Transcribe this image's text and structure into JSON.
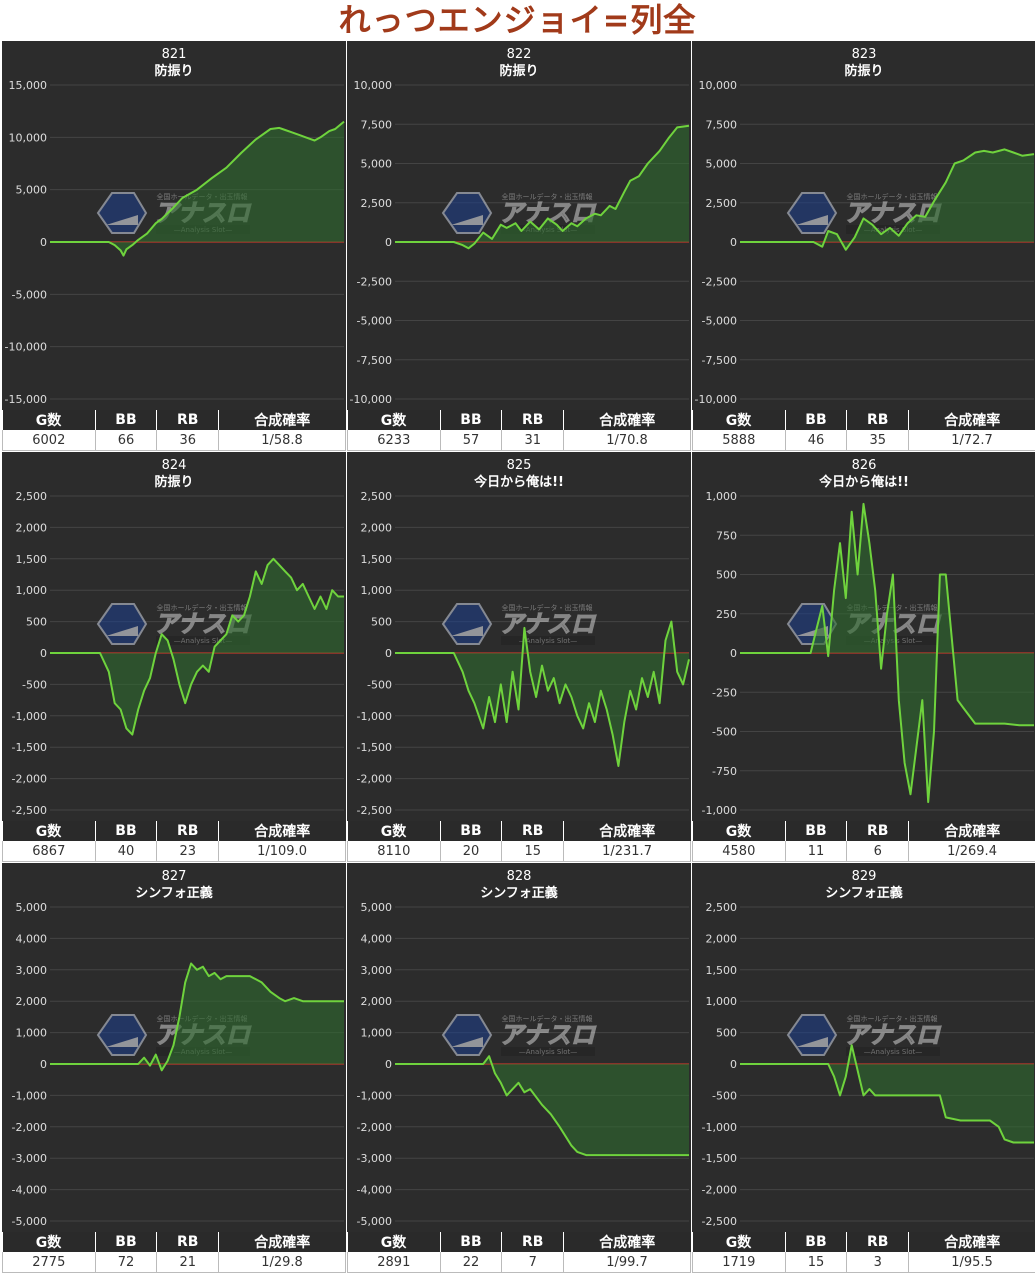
{
  "title": "れっつエンジョイ=列全",
  "stat_headers": [
    "G数",
    "BB",
    "RB",
    "合成確率"
  ],
  "colors": {
    "line": "#6fd33d",
    "fill": "#2f6b2f",
    "zero": "#c0392b",
    "panel": "#2c2c2c",
    "grid": "#444444",
    "text": "#dddddd"
  },
  "watermark": {
    "small": "全国ホールデータ・出玉情報",
    "main": "アナスロ",
    "sub": "—Analysis Slot—"
  },
  "chart_data": [
    {
      "type": "area",
      "id": "821",
      "title": "821",
      "subtitle": "防振り",
      "ylim": [
        -15000,
        15000
      ],
      "yticks": [
        "15,000",
        "10,000",
        "5,000",
        "0",
        "-5,000",
        "-10,000",
        "-15,000"
      ],
      "x": [
        0,
        0.2,
        0.22,
        0.24,
        0.25,
        0.26,
        0.28,
        0.3,
        0.33,
        0.36,
        0.38,
        0.42,
        0.45,
        0.5,
        0.55,
        0.6,
        0.65,
        0.7,
        0.75,
        0.78,
        0.8,
        0.82,
        0.85,
        0.88,
        0.9,
        0.92,
        0.95,
        0.97,
        1
      ],
      "values": [
        0,
        0,
        -300,
        -800,
        -1300,
        -700,
        -300,
        200,
        800,
        1800,
        2200,
        3300,
        4200,
        5000,
        6100,
        7100,
        8500,
        9800,
        10800,
        10900,
        10700,
        10500,
        10200,
        9900,
        9700,
        10000,
        10600,
        10800,
        11500
      ],
      "stats": {
        "games": "6002",
        "bb": "66",
        "rb": "36",
        "prob": "1/58.8"
      }
    },
    {
      "type": "area",
      "id": "822",
      "title": "822",
      "subtitle": "防振り",
      "ylim": [
        -10000,
        10000
      ],
      "yticks": [
        "10,000",
        "7,500",
        "5,000",
        "2,500",
        "0",
        "-2,500",
        "-5,000",
        "-7,500",
        "-10,000"
      ],
      "x": [
        0,
        0.2,
        0.23,
        0.25,
        0.27,
        0.3,
        0.33,
        0.36,
        0.38,
        0.41,
        0.43,
        0.46,
        0.49,
        0.52,
        0.55,
        0.57,
        0.6,
        0.62,
        0.65,
        0.68,
        0.7,
        0.73,
        0.75,
        0.78,
        0.8,
        0.83,
        0.86,
        0.9,
        0.93,
        0.96,
        1
      ],
      "values": [
        0,
        0,
        -200,
        -400,
        -100,
        600,
        200,
        1100,
        900,
        1200,
        700,
        1300,
        800,
        1500,
        1100,
        700,
        1200,
        1000,
        1500,
        1800,
        1700,
        2300,
        2100,
        3200,
        3900,
        4200,
        5000,
        5800,
        6600,
        7300,
        7400
      ],
      "stats": {
        "games": "6233",
        "bb": "57",
        "rb": "31",
        "prob": "1/70.8"
      }
    },
    {
      "type": "area",
      "id": "823",
      "title": "823",
      "subtitle": "防振り",
      "ylim": [
        -10000,
        10000
      ],
      "yticks": [
        "10,000",
        "7,500",
        "5,000",
        "2,500",
        "0",
        "-2,500",
        "-5,000",
        "-7,500",
        "-10,000"
      ],
      "x": [
        0,
        0.25,
        0.28,
        0.3,
        0.33,
        0.36,
        0.39,
        0.42,
        0.45,
        0.48,
        0.51,
        0.54,
        0.57,
        0.6,
        0.63,
        0.66,
        0.7,
        0.73,
        0.76,
        0.8,
        0.83,
        0.86,
        0.9,
        0.93,
        0.96,
        1
      ],
      "values": [
        0,
        0,
        -300,
        700,
        500,
        -500,
        300,
        1500,
        1100,
        500,
        900,
        400,
        1200,
        1700,
        1600,
        2600,
        3800,
        5000,
        5200,
        5700,
        5800,
        5700,
        5900,
        5700,
        5500,
        5600
      ],
      "stats": {
        "games": "5888",
        "bb": "46",
        "rb": "35",
        "prob": "1/72.7"
      }
    },
    {
      "type": "area",
      "id": "824",
      "title": "824",
      "subtitle": "防振り",
      "ylim": [
        -2500,
        2500
      ],
      "yticks": [
        "2,500",
        "2,000",
        "1,500",
        "1,000",
        "500",
        "0",
        "-500",
        "-1,000",
        "-1,500",
        "-2,000",
        "-2,500"
      ],
      "x": [
        0,
        0.17,
        0.2,
        0.22,
        0.24,
        0.26,
        0.28,
        0.3,
        0.32,
        0.34,
        0.36,
        0.38,
        0.4,
        0.42,
        0.44,
        0.46,
        0.48,
        0.5,
        0.52,
        0.54,
        0.56,
        0.58,
        0.6,
        0.62,
        0.64,
        0.66,
        0.68,
        0.7,
        0.72,
        0.74,
        0.76,
        0.78,
        0.8,
        0.82,
        0.84,
        0.86,
        0.88,
        0.9,
        0.92,
        0.94,
        0.96,
        0.98,
        1
      ],
      "values": [
        0,
        0,
        -300,
        -800,
        -900,
        -1200,
        -1300,
        -900,
        -600,
        -400,
        0,
        300,
        200,
        -100,
        -500,
        -800,
        -500,
        -300,
        -200,
        -300,
        100,
        200,
        300,
        600,
        500,
        600,
        900,
        1300,
        1100,
        1400,
        1500,
        1400,
        1300,
        1200,
        1000,
        1100,
        900,
        700,
        900,
        700,
        1000,
        900,
        900
      ],
      "stats": {
        "games": "6867",
        "bb": "40",
        "rb": "23",
        "prob": "1/109.0"
      }
    },
    {
      "type": "area",
      "id": "825",
      "title": "825",
      "subtitle": "今日から俺は!!",
      "ylim": [
        -2500,
        2500
      ],
      "yticks": [
        "2,500",
        "2,000",
        "1,500",
        "1,000",
        "500",
        "0",
        "-500",
        "-1,000",
        "-1,500",
        "-2,000",
        "-2,500"
      ],
      "x": [
        0,
        0.2,
        0.23,
        0.25,
        0.27,
        0.3,
        0.32,
        0.34,
        0.36,
        0.38,
        0.4,
        0.42,
        0.44,
        0.46,
        0.48,
        0.5,
        0.52,
        0.54,
        0.56,
        0.58,
        0.6,
        0.62,
        0.64,
        0.66,
        0.68,
        0.7,
        0.72,
        0.74,
        0.76,
        0.78,
        0.8,
        0.82,
        0.84,
        0.86,
        0.88,
        0.9,
        0.92,
        0.94,
        0.96,
        0.98,
        1
      ],
      "values": [
        0,
        0,
        -300,
        -600,
        -800,
        -1200,
        -700,
        -1100,
        -500,
        -1100,
        -300,
        -900,
        400,
        -300,
        -700,
        -200,
        -600,
        -400,
        -800,
        -500,
        -700,
        -1000,
        -1200,
        -800,
        -1100,
        -600,
        -900,
        -1300,
        -1800,
        -1100,
        -600,
        -900,
        -400,
        -700,
        -300,
        -800,
        200,
        500,
        -300,
        -500,
        -100
      ],
      "stats": {
        "games": "8110",
        "bb": "20",
        "rb": "15",
        "prob": "1/231.7"
      }
    },
    {
      "type": "area",
      "id": "826",
      "title": "826",
      "subtitle": "今日から俺は!!",
      "ylim": [
        -1000,
        1000
      ],
      "yticks": [
        "1,000",
        "750",
        "500",
        "250",
        "0",
        "-250",
        "-500",
        "-750",
        "-1,000"
      ],
      "x": [
        0,
        0.24,
        0.26,
        0.28,
        0.3,
        0.32,
        0.34,
        0.36,
        0.38,
        0.4,
        0.42,
        0.44,
        0.46,
        0.48,
        0.5,
        0.52,
        0.54,
        0.56,
        0.58,
        0.6,
        0.62,
        0.64,
        0.66,
        0.68,
        0.7,
        0.72,
        0.74,
        0.76,
        0.8,
        0.85,
        0.9,
        0.95,
        1
      ],
      "values": [
        0,
        0,
        150,
        300,
        -20,
        400,
        700,
        350,
        900,
        500,
        950,
        700,
        400,
        -100,
        250,
        500,
        -300,
        -700,
        -900,
        -600,
        -300,
        -950,
        -500,
        500,
        500,
        100,
        -300,
        -350,
        -450,
        -450,
        -450,
        -460,
        -460
      ],
      "stats": {
        "games": "4580",
        "bb": "11",
        "rb": "6",
        "prob": "1/269.4"
      }
    },
    {
      "type": "area",
      "id": "827",
      "title": "827",
      "subtitle": "シンフォ正義",
      "ylim": [
        -5000,
        5000
      ],
      "yticks": [
        "5,000",
        "4,000",
        "3,000",
        "2,000",
        "1,000",
        "0",
        "-1,000",
        "-2,000",
        "-3,000",
        "-4,000",
        "-5,000"
      ],
      "x": [
        0,
        0.3,
        0.32,
        0.34,
        0.36,
        0.38,
        0.4,
        0.42,
        0.44,
        0.46,
        0.48,
        0.5,
        0.52,
        0.54,
        0.56,
        0.58,
        0.6,
        0.62,
        0.65,
        0.68,
        0.72,
        0.75,
        0.78,
        0.8,
        0.83,
        0.86,
        0.9,
        0.95,
        1
      ],
      "values": [
        0,
        0,
        200,
        -50,
        300,
        -200,
        100,
        600,
        1500,
        2600,
        3200,
        3000,
        3100,
        2800,
        2900,
        2700,
        2800,
        2800,
        2800,
        2800,
        2600,
        2300,
        2100,
        2000,
        2100,
        2000,
        2000,
        2000,
        2000
      ],
      "stats": {
        "games": "2775",
        "bb": "72",
        "rb": "21",
        "prob": "1/29.8"
      }
    },
    {
      "type": "area",
      "id": "828",
      "title": "828",
      "subtitle": "シンフォ正義",
      "ylim": [
        -5000,
        5000
      ],
      "yticks": [
        "5,000",
        "4,000",
        "3,000",
        "2,000",
        "1,000",
        "0",
        "-1,000",
        "-2,000",
        "-3,000",
        "-4,000",
        "-5,000"
      ],
      "x": [
        0,
        0.3,
        0.32,
        0.34,
        0.36,
        0.38,
        0.4,
        0.42,
        0.44,
        0.46,
        0.5,
        0.53,
        0.56,
        0.58,
        0.6,
        0.62,
        0.65,
        0.7,
        0.8,
        0.9,
        1
      ],
      "values": [
        0,
        0,
        250,
        -300,
        -600,
        -1000,
        -800,
        -600,
        -900,
        -800,
        -1300,
        -1600,
        -2000,
        -2300,
        -2600,
        -2800,
        -2900,
        -2900,
        -2900,
        -2900,
        -2900
      ],
      "stats": {
        "games": "2891",
        "bb": "22",
        "rb": "7",
        "prob": "1/99.7"
      }
    },
    {
      "type": "area",
      "id": "829",
      "title": "829",
      "subtitle": "シンフォ正義",
      "ylim": [
        -2500,
        2500
      ],
      "yticks": [
        "2,500",
        "2,000",
        "1,500",
        "1,000",
        "500",
        "0",
        "-500",
        "-1,000",
        "-1,500",
        "-2,000",
        "-2,500"
      ],
      "x": [
        0,
        0.3,
        0.32,
        0.34,
        0.36,
        0.38,
        0.4,
        0.42,
        0.44,
        0.46,
        0.5,
        0.55,
        0.6,
        0.65,
        0.68,
        0.7,
        0.75,
        0.8,
        0.85,
        0.88,
        0.9,
        0.93,
        0.96,
        1
      ],
      "values": [
        0,
        0,
        -200,
        -500,
        -200,
        300,
        -100,
        -500,
        -400,
        -500,
        -500,
        -500,
        -500,
        -500,
        -500,
        -850,
        -900,
        -900,
        -900,
        -1000,
        -1200,
        -1250,
        -1250,
        -1250
      ],
      "stats": {
        "games": "1719",
        "bb": "15",
        "rb": "3",
        "prob": "1/95.5"
      }
    }
  ]
}
